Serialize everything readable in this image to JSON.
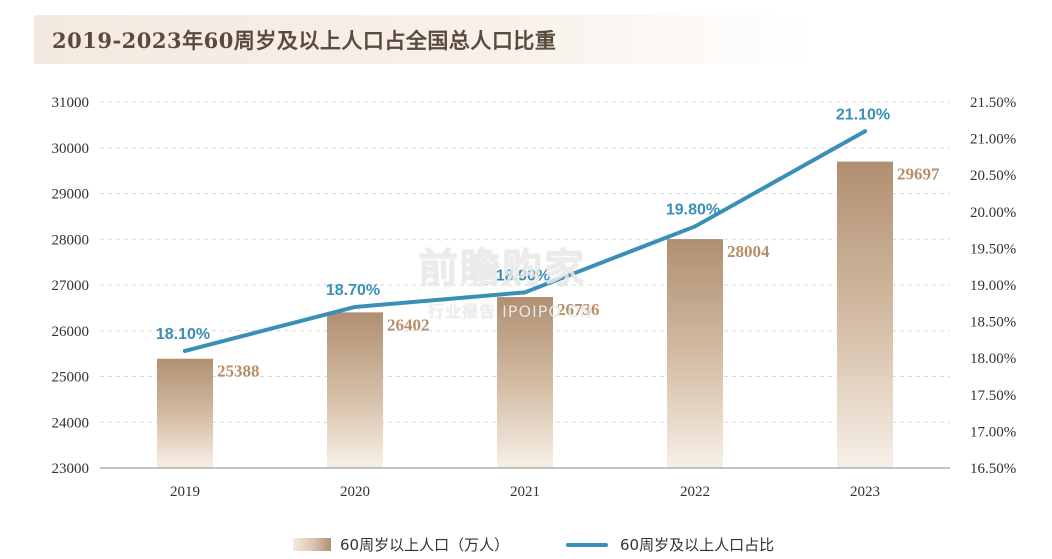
{
  "title": "2019-2023年60周岁及以上人口占全国总人口比重",
  "watermark": {
    "main": "前瞻购家",
    "sub": "行业报告 IPOIPO.CN"
  },
  "legend": {
    "bar_label": "60周岁以上人口（万人）",
    "line_label": "60周岁及以上人口占比"
  },
  "colors": {
    "line": "#3a8fb7",
    "bar_top": "#b08f71",
    "bar_bottom": "#f7f0e8",
    "bar_label": "#b68f69",
    "axis_text": "#333333"
  },
  "chart_data": {
    "type": "bar",
    "categories": [
      "2019",
      "2020",
      "2021",
      "2022",
      "2023"
    ],
    "series": [
      {
        "name": "60周岁以上人口（万人）",
        "type": "bar",
        "axis": "left",
        "values": [
          25388,
          26402,
          26736,
          28004,
          29697
        ],
        "labels": [
          "25388",
          "26402",
          "26736",
          "28004",
          "29697"
        ]
      },
      {
        "name": "60周岁及以上人口占比",
        "type": "line",
        "axis": "right",
        "values": [
          18.1,
          18.7,
          18.9,
          19.8,
          21.1
        ],
        "labels": [
          "18.10%",
          "18.70%",
          "18.90%",
          "19.80%",
          "21.10%"
        ]
      }
    ],
    "left_axis": {
      "min": 23000,
      "max": 31000,
      "ticks": [
        "23000",
        "24000",
        "25000",
        "26000",
        "27000",
        "28000",
        "29000",
        "30000",
        "31000"
      ]
    },
    "right_axis": {
      "min": 16.5,
      "max": 21.5,
      "ticks": [
        "16.50%",
        "17.00%",
        "17.50%",
        "18.00%",
        "18.50%",
        "19.00%",
        "19.50%",
        "20.00%",
        "20.50%",
        "21.00%",
        "21.50%"
      ]
    },
    "grid": "dashed horizontal",
    "legend_position": "bottom-center"
  }
}
